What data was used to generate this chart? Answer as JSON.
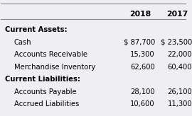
{
  "header_cols": [
    "",
    "2018",
    "2017"
  ],
  "rows": [
    {
      "label": "Current Assets:",
      "val2018": "",
      "val2017": "",
      "indent": 0,
      "bold": true
    },
    {
      "label": "Cash",
      "val2018": "$ 87,700",
      "val2017": "$ 23,500",
      "indent": 1,
      "bold": false
    },
    {
      "label": "Accounts Receivable",
      "val2018": "15,300",
      "val2017": "22,000",
      "indent": 1,
      "bold": false
    },
    {
      "label": "Merchandise Inventory",
      "val2018": "62,600",
      "val2017": "60,400",
      "indent": 1,
      "bold": false
    },
    {
      "label": "Current Liabilities:",
      "val2018": "",
      "val2017": "",
      "indent": 0,
      "bold": true
    },
    {
      "label": "Accounts Payable",
      "val2018": "28,100",
      "val2017": "26,100",
      "indent": 1,
      "bold": false
    },
    {
      "label": "Accrued Liabilities",
      "val2018": "10,600",
      "val2017": "11,300",
      "indent": 1,
      "bold": false
    }
  ],
  "bg_color": "#eeeef3",
  "header_line_color": "#888888",
  "top_line_color": "#888888",
  "font_size": 7.2,
  "header_font_size": 7.8
}
